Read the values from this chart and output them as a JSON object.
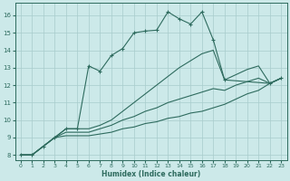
{
  "xlabel": "Humidex (Indice chaleur)",
  "xlim": [
    -0.5,
    23.5
  ],
  "ylim": [
    7.7,
    16.7
  ],
  "xticks": [
    0,
    1,
    2,
    3,
    4,
    5,
    6,
    7,
    8,
    9,
    10,
    11,
    12,
    13,
    14,
    15,
    16,
    17,
    18,
    19,
    20,
    21,
    22,
    23
  ],
  "yticks": [
    8,
    9,
    10,
    11,
    12,
    13,
    14,
    15,
    16
  ],
  "bg_color": "#cce9e9",
  "grid_color": "#a8cccc",
  "line_color": "#2e6b5e",
  "lines": [
    {
      "x": [
        0,
        1,
        2,
        3,
        4,
        5,
        6,
        7,
        8,
        9,
        10,
        11,
        12,
        13,
        14,
        15,
        16,
        17,
        18,
        22,
        23
      ],
      "y": [
        8,
        8,
        8.5,
        9,
        9.5,
        9.5,
        13.1,
        12.8,
        13.7,
        14.1,
        15.0,
        15.1,
        15.15,
        16.2,
        15.8,
        15.5,
        16.2,
        14.6,
        12.3,
        12.1,
        12.4
      ],
      "marker": true
    },
    {
      "x": [
        0,
        1,
        2,
        3,
        4,
        5,
        6,
        7,
        8,
        9,
        10,
        11,
        12,
        13,
        14,
        15,
        16,
        17,
        18,
        19,
        20,
        21,
        22,
        23
      ],
      "y": [
        8,
        8,
        8.5,
        9,
        9.5,
        9.5,
        9.5,
        9.7,
        10.0,
        10.5,
        11.0,
        11.5,
        12.0,
        12.5,
        13.0,
        13.4,
        13.8,
        14.0,
        12.3,
        12.6,
        12.9,
        13.1,
        12.1,
        12.4
      ],
      "marker": false
    },
    {
      "x": [
        0,
        1,
        2,
        3,
        4,
        5,
        6,
        7,
        8,
        9,
        10,
        11,
        12,
        13,
        14,
        15,
        16,
        17,
        18,
        19,
        20,
        21,
        22,
        23
      ],
      "y": [
        8,
        8,
        8.5,
        9,
        9.3,
        9.3,
        9.3,
        9.5,
        9.7,
        10.0,
        10.2,
        10.5,
        10.7,
        11.0,
        11.2,
        11.4,
        11.6,
        11.8,
        11.7,
        12.0,
        12.2,
        12.4,
        12.1,
        12.4
      ],
      "marker": false
    },
    {
      "x": [
        0,
        1,
        2,
        3,
        4,
        5,
        6,
        7,
        8,
        9,
        10,
        11,
        12,
        13,
        14,
        15,
        16,
        17,
        18,
        19,
        20,
        21,
        22,
        23
      ],
      "y": [
        8,
        8,
        8.5,
        9,
        9.1,
        9.1,
        9.1,
        9.2,
        9.3,
        9.5,
        9.6,
        9.8,
        9.9,
        10.1,
        10.2,
        10.4,
        10.5,
        10.7,
        10.9,
        11.2,
        11.5,
        11.7,
        12.1,
        12.4
      ],
      "marker": false
    }
  ]
}
